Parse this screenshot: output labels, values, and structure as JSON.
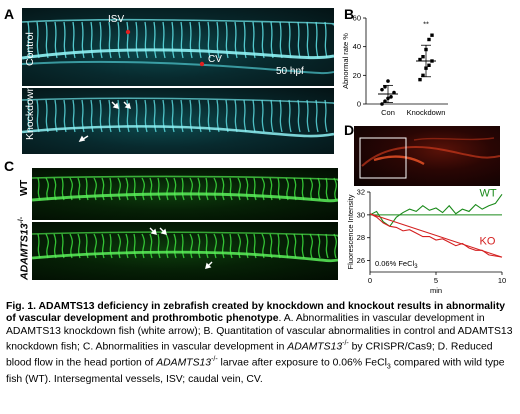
{
  "panels": {
    "a": {
      "letter": "A",
      "rows": [
        "Control",
        "Knockdown"
      ],
      "labels": {
        "isv": "ISV",
        "cv": "CV",
        "time": "50 hpf"
      }
    },
    "b": {
      "letter": "B",
      "significance": "**"
    },
    "c": {
      "letter": "C",
      "rows": [
        "WT",
        "ADAMTS13"
      ],
      "superscript": "-/-"
    },
    "d": {
      "letter": "D",
      "condition_text": "0.06% FeCl",
      "condition_subscript": "3"
    }
  },
  "chart_data": [
    {
      "type": "scatter",
      "panel": "B",
      "ylabel": "Abnormal rate %",
      "categories": [
        "Con",
        "Knockdown"
      ],
      "ylim": [
        0,
        60
      ],
      "yticks": [
        0,
        20,
        40,
        60
      ],
      "series": [
        {
          "name": "Con",
          "values": [
            0,
            2,
            4,
            5,
            8,
            10,
            12,
            16
          ],
          "mean": 7,
          "sd": 6,
          "marker": "circle"
        },
        {
          "name": "Knockdown",
          "values": [
            17,
            20,
            25,
            27,
            30,
            31,
            33,
            38,
            45,
            48
          ],
          "mean": 30,
          "sd": 11,
          "marker": "square"
        }
      ],
      "annotation": "**"
    },
    {
      "type": "line",
      "panel": "D",
      "ylabel": "Fluorescence Intensity",
      "xlabel": "min",
      "xlim": [
        0,
        10
      ],
      "ylim": [
        25,
        32
      ],
      "xticks": [
        0,
        5,
        10
      ],
      "yticks": [
        26,
        28,
        30,
        32
      ],
      "series": [
        {
          "name": "WT",
          "color": "#1a8a1a",
          "x": [
            0,
            0.5,
            1,
            1.5,
            2,
            2.5,
            3,
            3.5,
            4,
            4.5,
            5,
            5.5,
            6,
            6.5,
            7,
            7.5,
            8,
            8.5,
            9,
            9.5,
            10
          ],
          "y": [
            30.0,
            30.3,
            29.4,
            29.0,
            29.8,
            30.2,
            30.5,
            30.3,
            30.8,
            30.4,
            30.6,
            30.2,
            30.8,
            30.1,
            30.5,
            30.3,
            30.9,
            30.5,
            30.8,
            31.0,
            31.8
          ],
          "fit": [
            30.0,
            30.0
          ]
        },
        {
          "name": "KO",
          "color": "#d42020",
          "x": [
            0,
            0.5,
            1,
            1.5,
            2,
            2.5,
            3,
            3.5,
            4,
            4.5,
            5,
            5.5,
            6,
            6.5,
            7,
            7.5,
            8,
            8.5,
            9,
            9.5,
            10
          ],
          "y": [
            30.1,
            29.8,
            29.3,
            29.0,
            28.9,
            28.6,
            28.7,
            28.4,
            28.1,
            28.1,
            27.8,
            27.9,
            27.6,
            27.3,
            27.5,
            27.1,
            26.9,
            26.9,
            26.5,
            26.4,
            26.3
          ],
          "fit": [
            30.1,
            26.3
          ]
        }
      ]
    }
  ],
  "caption": {
    "title": "Fig. 1. ADAMTS13 deficiency in zebrafish created by knockdown and knockout results in abnormality of vascular development and prothrombotic phenotype",
    "p1": ". A. Abnormalities in vascular development in ADAMTS13 knockdown fish (white arrow); B. Quantitation of vascular abnormalities in control and ADAMTS13 knockdown fish; C. Abnormalities in vascular development in ",
    "ital1": "ADAMTS13",
    "sup1": "-/-",
    "p2": " by CRISPR/Cas9; D. Reduced blood flow in the head portion of ",
    "ital2": "ADAMTS13",
    "sup2": "-/-",
    "p3": " larvae after exposure to 0.06% FeCl",
    "sub3": "3",
    "p4": " compared with wild type fish (WT). Intersegmental  vessels, ISV; caudal vein, CV."
  }
}
